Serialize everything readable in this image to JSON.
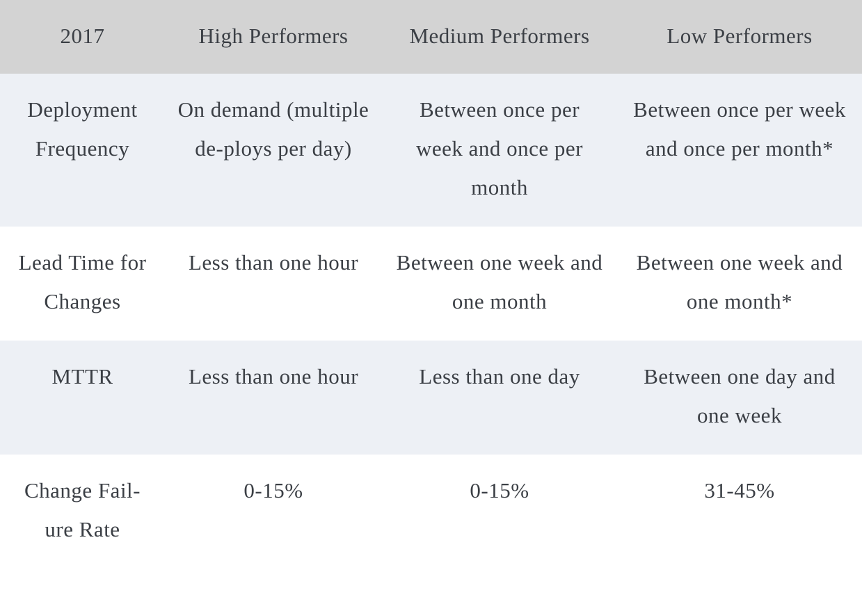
{
  "table": {
    "headers": [
      "2017",
      "High Performers",
      "Medium Performers",
      "Low Performers"
    ],
    "rows": [
      [
        "Deployment Frequency",
        "On demand (multiple de-ploys per day)",
        "Between once per week and once per month",
        "Between once per week and once per month*"
      ],
      [
        "Lead Time for Changes",
        "Less than one hour",
        "Between one week and one month",
        "Between one week and one month*"
      ],
      [
        "MTTR",
        "Less than one hour",
        "Less than one day",
        "Between one day and one week"
      ],
      [
        "Change Fail-ure Rate",
        "0-15%",
        "0-15%",
        "31-45%"
      ]
    ]
  },
  "colors": {
    "header_bg": "#d3d3d3",
    "shaded_row_bg": "#edf0f5",
    "plain_row_bg": "#ffffff",
    "text": "#3b3f45"
  }
}
